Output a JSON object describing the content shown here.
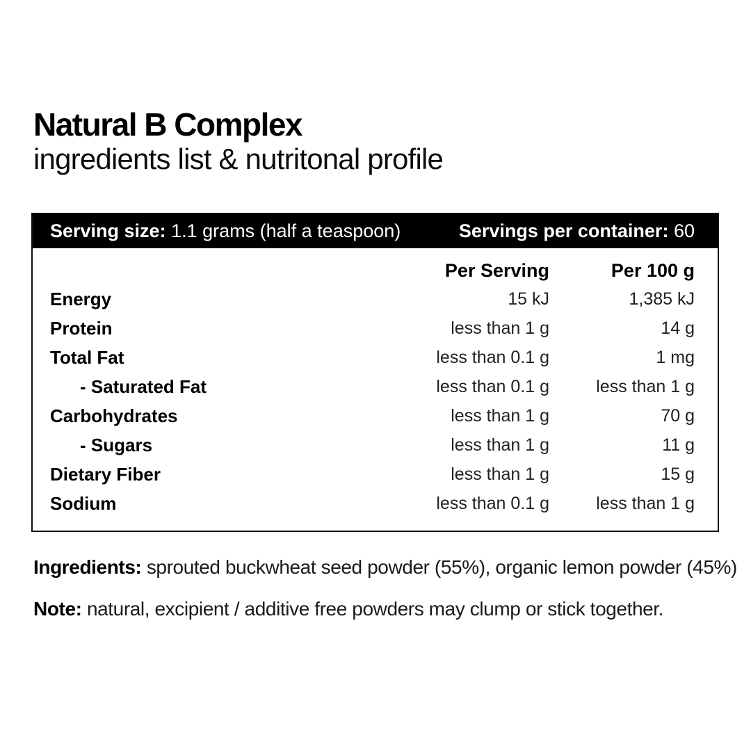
{
  "heading": {
    "title": "Natural B Complex",
    "subtitle": "ingredients list & nutritonal profile"
  },
  "panel": {
    "serving_size_label": "Serving size:",
    "serving_size_value": "1.1 grams (half a teaspoon)",
    "servings_per_container_label": "Servings per container:",
    "servings_per_container_value": "60",
    "columns": {
      "per_serving": "Per Serving",
      "per_100g": "Per 100 g"
    },
    "rows": [
      {
        "label": "Energy",
        "indent": false,
        "per_serving": "15 kJ",
        "per_100g": "1,385 kJ"
      },
      {
        "label": "Protein",
        "indent": false,
        "per_serving": "less than 1 g",
        "per_100g": "14 g"
      },
      {
        "label": "Total Fat",
        "indent": false,
        "per_serving": "less than 0.1 g",
        "per_100g": "1 mg"
      },
      {
        "label": "- Saturated Fat",
        "indent": true,
        "per_serving": "less than 0.1 g",
        "per_100g": "less than 1 g"
      },
      {
        "label": "Carbohydrates",
        "indent": false,
        "per_serving": "less than 1 g",
        "per_100g": "70 g"
      },
      {
        "label": "- Sugars",
        "indent": true,
        "per_serving": "less than 1 g",
        "per_100g": "11 g"
      },
      {
        "label": "Dietary Fiber",
        "indent": false,
        "per_serving": "less than 1 g",
        "per_100g": "15 g"
      },
      {
        "label": "Sodium",
        "indent": false,
        "per_serving": "less than 0.1 g",
        "per_100g": "less than 1 g"
      }
    ]
  },
  "footer": {
    "ingredients_label": "Ingredients:",
    "ingredients_text": "sprouted buckwheat seed powder (55%), organic lemon powder (45%)",
    "note_label": "Note:",
    "note_text": "natural, excipient / additive free powders may clump or stick together."
  },
  "colors": {
    "background": "#ffffff",
    "bar_background": "#000000",
    "bar_text": "#ffffff",
    "border": "#111111",
    "label_text": "#000000",
    "value_text": "#222222"
  }
}
